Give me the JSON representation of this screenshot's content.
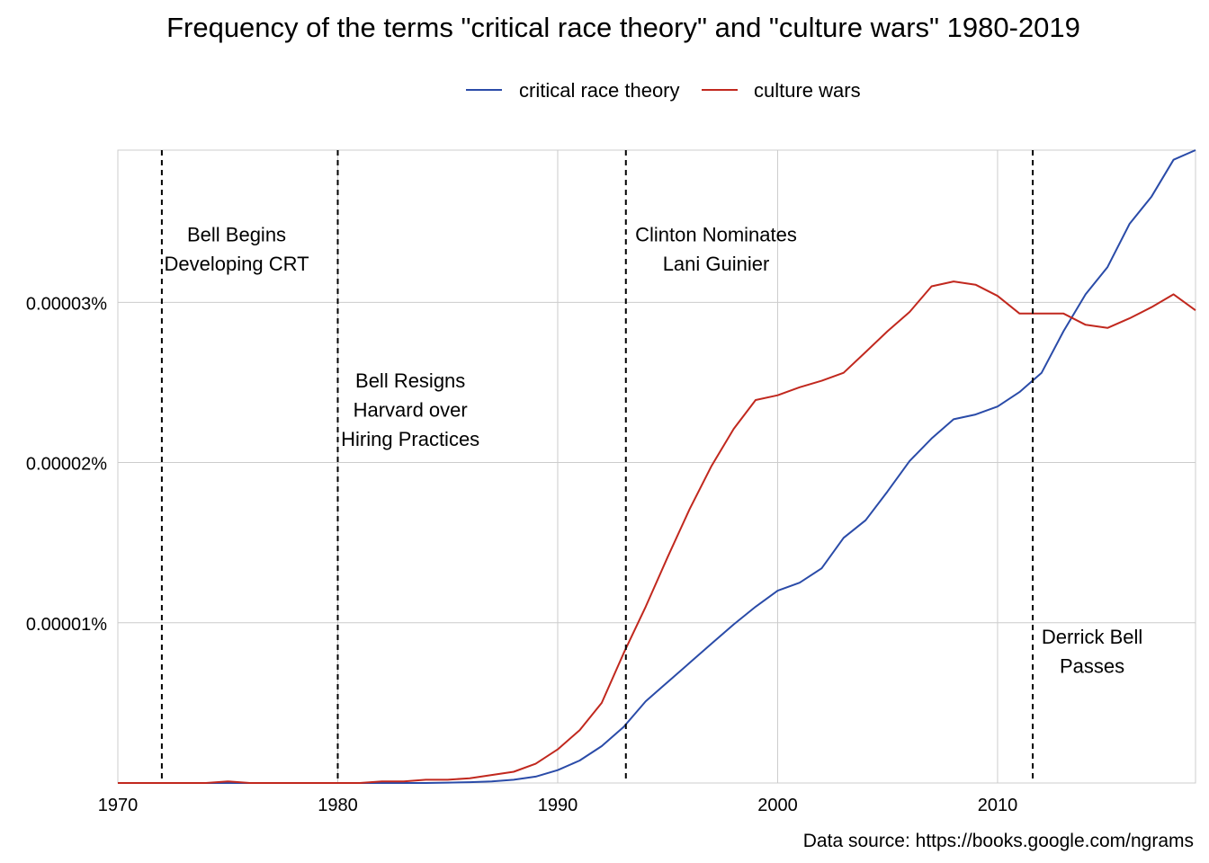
{
  "chart_data": {
    "type": "line",
    "title": "Frequency of the terms \"critical race theory\" and \"culture wars\" 1980-2019",
    "xlabel": "",
    "ylabel": "",
    "xlim": [
      1970,
      2019
    ],
    "ylim": [
      0,
      3.95e-05
    ],
    "x_ticks": [
      1970,
      1980,
      1990,
      2000,
      2010
    ],
    "x_tick_labels": [
      "1970",
      "1980",
      "1990",
      "2000",
      "2010"
    ],
    "y_ticks": [
      1e-05,
      2e-05,
      3e-05
    ],
    "y_tick_labels": [
      "0.00001%",
      "0.00002%",
      "0.00003%"
    ],
    "grid": true,
    "legend_position": "top",
    "x": [
      1970,
      1971,
      1972,
      1973,
      1974,
      1975,
      1976,
      1977,
      1978,
      1979,
      1980,
      1981,
      1982,
      1983,
      1984,
      1985,
      1986,
      1987,
      1988,
      1989,
      1990,
      1991,
      1992,
      1993,
      1994,
      1995,
      1996,
      1997,
      1998,
      1999,
      2000,
      2001,
      2002,
      2003,
      2004,
      2005,
      2006,
      2007,
      2008,
      2009,
      2010,
      2011,
      2012,
      2013,
      2014,
      2015,
      2016,
      2017,
      2018,
      2019
    ],
    "series": [
      {
        "name": "critical race theory",
        "color": "#2a4ba8",
        "values": [
          0,
          0,
          0,
          0,
          0,
          0,
          0,
          0,
          0,
          0,
          0,
          0,
          0,
          0,
          0,
          2e-08,
          5e-08,
          1e-07,
          2e-07,
          4e-07,
          8e-07,
          1.4e-06,
          2.3e-06,
          3.5e-06,
          5.1e-06,
          6.3e-06,
          7.5e-06,
          8.7e-06,
          9.9e-06,
          1.1e-05,
          1.2e-05,
          1.25e-05,
          1.34e-05,
          1.53e-05,
          1.64e-05,
          1.82e-05,
          2.01e-05,
          2.15e-05,
          2.27e-05,
          2.3e-05,
          2.35e-05,
          2.44e-05,
          2.56e-05,
          2.82e-05,
          3.05e-05,
          3.22e-05,
          3.49e-05,
          3.66e-05,
          3.89e-05,
          3.95e-05
        ]
      },
      {
        "name": "culture wars",
        "color": "#c1281e",
        "values": [
          0,
          0,
          0,
          0,
          0,
          1e-07,
          0,
          0,
          0,
          0,
          0,
          0,
          1e-07,
          1e-07,
          2e-07,
          2e-07,
          3e-07,
          5e-07,
          7e-07,
          1.2e-06,
          2.1e-06,
          3.3e-06,
          5e-06,
          8.1e-06,
          1.1e-05,
          1.41e-05,
          1.71e-05,
          1.98e-05,
          2.21e-05,
          2.39e-05,
          2.42e-05,
          2.47e-05,
          2.51e-05,
          2.56e-05,
          2.69e-05,
          2.82e-05,
          2.94e-05,
          3.1e-05,
          3.13e-05,
          3.11e-05,
          3.04e-05,
          2.93e-05,
          2.93e-05,
          2.93e-05,
          2.86e-05,
          2.84e-05,
          2.9e-05,
          2.97e-05,
          3.05e-05,
          2.95e-05
        ]
      }
    ],
    "events": [
      {
        "x": 1972,
        "label_lines": [
          "Bell Begins",
          "Developing CRT"
        ],
        "label_year": 1975.4,
        "label_y": 3.38e-05
      },
      {
        "x": 1980,
        "label_lines": [
          "Bell Resigns",
          "Harvard over",
          "Hiring Practices"
        ],
        "label_year": 1983.3,
        "label_y": 2.47e-05
      },
      {
        "x": 1993.1,
        "label_lines": [
          "Clinton Nominates",
          "Lani Guinier"
        ],
        "label_year": 1997.2,
        "label_y": 3.38e-05
      },
      {
        "x": 2011.6,
        "label_lines": [
          "Derrick Bell",
          "Passes"
        ],
        "label_year": 2014.3,
        "label_y": 8.7e-06
      }
    ],
    "source": "Data source: https://books.google.com/ngrams"
  }
}
